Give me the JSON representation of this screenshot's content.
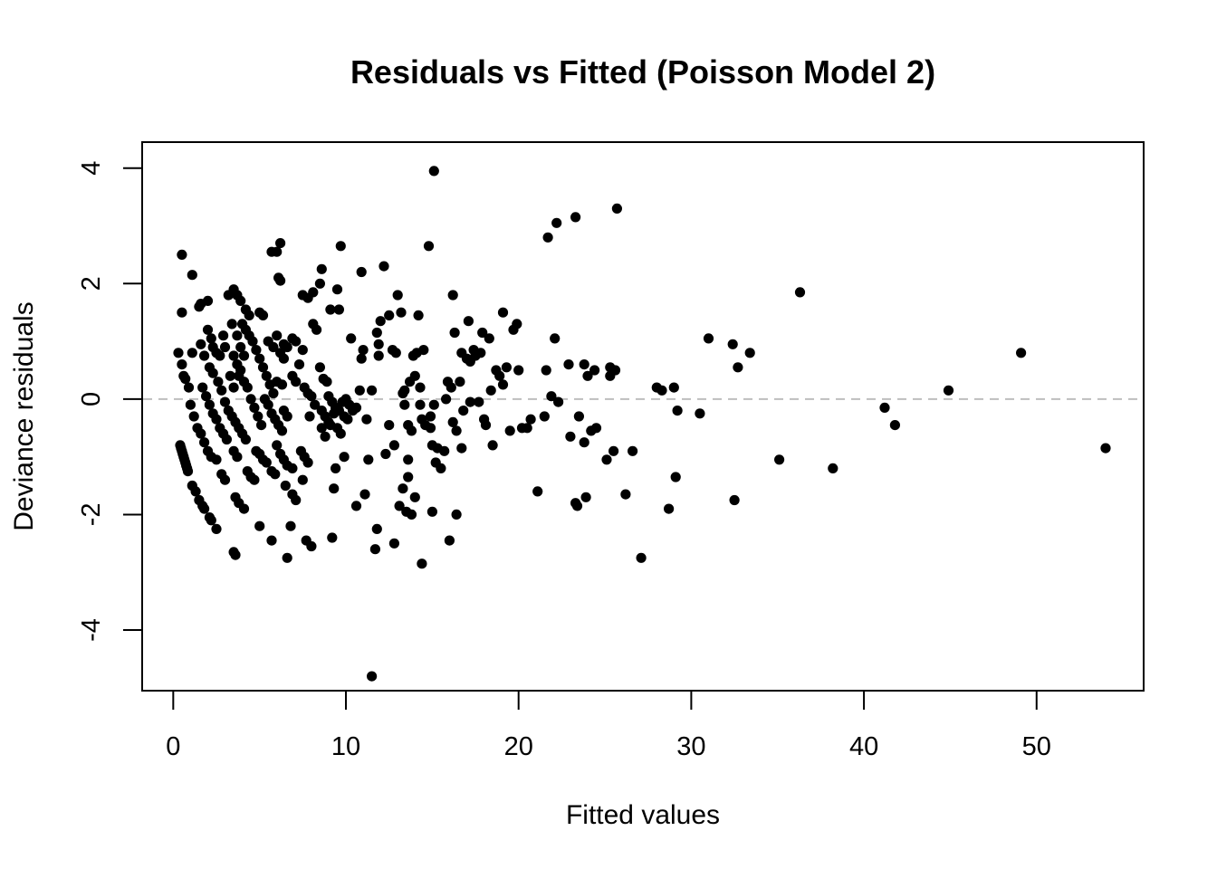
{
  "chart_data": {
    "type": "scatter",
    "title": "Residuals vs Fitted (Poisson Model 2)",
    "xlabel": "Fitted values",
    "ylabel": "Deviance residuals",
    "xlim": [
      -1.8,
      56.2
    ],
    "ylim": [
      -5.05,
      4.45
    ],
    "xticks": [
      0,
      10,
      20,
      30,
      40,
      50
    ],
    "yticks": [
      -4,
      -2,
      0,
      2,
      4
    ],
    "reference_line": {
      "y": 0,
      "style": "dashed",
      "color": "#bebebe"
    },
    "grid": false,
    "legend": "none",
    "point_color": "#000000",
    "points": [
      [
        0.4,
        -0.8
      ],
      [
        0.45,
        -0.85
      ],
      [
        0.5,
        -0.9
      ],
      [
        0.55,
        -0.95
      ],
      [
        0.6,
        -1.0
      ],
      [
        0.65,
        -1.05
      ],
      [
        0.7,
        -1.1
      ],
      [
        0.75,
        -1.15
      ],
      [
        0.8,
        -1.2
      ],
      [
        0.85,
        -1.25
      ],
      [
        1.1,
        -1.5
      ],
      [
        1.3,
        -1.6
      ],
      [
        1.5,
        -1.75
      ],
      [
        1.7,
        -1.85
      ],
      [
        1.8,
        -1.9
      ],
      [
        2.1,
        -2.05
      ],
      [
        2.2,
        -2.1
      ],
      [
        2.5,
        -2.25
      ],
      [
        3.5,
        -2.65
      ],
      [
        3.6,
        -2.7
      ],
      [
        1.0,
        -0.1
      ],
      [
        1.2,
        -0.3
      ],
      [
        1.4,
        -0.5
      ],
      [
        1.6,
        -0.6
      ],
      [
        1.8,
        -0.75
      ],
      [
        2.0,
        -0.9
      ],
      [
        2.2,
        -1.0
      ],
      [
        2.5,
        -1.05
      ],
      [
        1.7,
        0.2
      ],
      [
        1.9,
        0.05
      ],
      [
        2.1,
        -0.1
      ],
      [
        2.3,
        -0.25
      ],
      [
        2.5,
        -0.35
      ],
      [
        2.7,
        -0.5
      ],
      [
        2.9,
        -0.6
      ],
      [
        3.1,
        -0.7
      ],
      [
        2.8,
        -1.3
      ],
      [
        3.0,
        -1.4
      ],
      [
        3.6,
        -1.7
      ],
      [
        3.8,
        -1.8
      ],
      [
        4.1,
        -1.9
      ],
      [
        5.0,
        -2.2
      ],
      [
        5.7,
        -2.45
      ],
      [
        6.6,
        -2.75
      ],
      [
        6.8,
        -2.2
      ],
      [
        7.7,
        -2.45
      ],
      [
        8.0,
        -2.55
      ],
      [
        0.3,
        0.8
      ],
      [
        0.5,
        0.6
      ],
      [
        0.6,
        0.4
      ],
      [
        0.7,
        0.35
      ],
      [
        0.9,
        0.2
      ],
      [
        1.1,
        0.8
      ],
      [
        1.5,
        1.6
      ],
      [
        1.6,
        1.65
      ],
      [
        2.0,
        1.7
      ],
      [
        0.5,
        2.5
      ],
      [
        1.1,
        2.15
      ],
      [
        0.5,
        1.5
      ],
      [
        1.6,
        0.95
      ],
      [
        1.8,
        0.75
      ],
      [
        2.0,
        1.2
      ],
      [
        2.2,
        1.05
      ],
      [
        2.3,
        0.9
      ],
      [
        2.5,
        0.8
      ],
      [
        2.7,
        0.75
      ],
      [
        2.9,
        1.1
      ],
      [
        3.0,
        0.9
      ],
      [
        2.1,
        0.55
      ],
      [
        2.3,
        0.45
      ],
      [
        2.6,
        0.3
      ],
      [
        2.8,
        0.15
      ],
      [
        3.0,
        -0.05
      ],
      [
        3.2,
        -0.2
      ],
      [
        3.4,
        -0.3
      ],
      [
        3.6,
        -0.4
      ],
      [
        3.8,
        -0.5
      ],
      [
        4.0,
        -0.6
      ],
      [
        4.2,
        -0.7
      ],
      [
        3.3,
        0.4
      ],
      [
        3.5,
        0.2
      ],
      [
        3.2,
        1.8
      ],
      [
        3.5,
        1.9
      ],
      [
        3.7,
        1.8
      ],
      [
        3.9,
        1.7
      ],
      [
        4.2,
        1.55
      ],
      [
        4.4,
        1.45
      ],
      [
        3.4,
        1.3
      ],
      [
        3.7,
        1.1
      ],
      [
        3.9,
        0.9
      ],
      [
        4.1,
        0.75
      ],
      [
        3.5,
        0.75
      ],
      [
        3.7,
        0.6
      ],
      [
        3.9,
        0.5
      ],
      [
        4.1,
        0.3
      ],
      [
        4.3,
        0.2
      ],
      [
        4.5,
        0.0
      ],
      [
        4.7,
        -0.15
      ],
      [
        4.9,
        -0.3
      ],
      [
        5.1,
        -0.45
      ],
      [
        3.8,
        0.4
      ],
      [
        3.5,
        -0.9
      ],
      [
        3.7,
        -1.0
      ],
      [
        4.3,
        -1.25
      ],
      [
        4.5,
        -1.35
      ],
      [
        4.7,
        -1.4
      ],
      [
        4.8,
        -0.9
      ],
      [
        5.0,
        -0.95
      ],
      [
        5.2,
        -1.05
      ],
      [
        5.4,
        -1.1
      ],
      [
        5.7,
        -1.25
      ],
      [
        5.9,
        -1.3
      ],
      [
        4.0,
        1.3
      ],
      [
        4.2,
        1.2
      ],
      [
        4.4,
        1.1
      ],
      [
        4.6,
        1.0
      ],
      [
        4.8,
        0.85
      ],
      [
        5.0,
        0.7
      ],
      [
        5.2,
        0.55
      ],
      [
        5.4,
        0.4
      ],
      [
        5.6,
        0.25
      ],
      [
        5.8,
        0.1
      ],
      [
        5.0,
        1.5
      ],
      [
        5.2,
        1.45
      ],
      [
        5.5,
        1.0
      ],
      [
        5.8,
        0.9
      ],
      [
        6.0,
        1.1
      ],
      [
        6.2,
        0.8
      ],
      [
        6.4,
        0.7
      ],
      [
        5.7,
        2.55
      ],
      [
        6.0,
        2.55
      ],
      [
        6.2,
        2.7
      ],
      [
        6.1,
        2.1
      ],
      [
        6.2,
        2.05
      ],
      [
        5.3,
        0.0
      ],
      [
        5.5,
        -0.1
      ],
      [
        5.7,
        -0.25
      ],
      [
        5.9,
        -0.35
      ],
      [
        6.1,
        -0.45
      ],
      [
        6.3,
        -0.55
      ],
      [
        6.4,
        -0.2
      ],
      [
        6.6,
        -0.3
      ],
      [
        6.0,
        -0.8
      ],
      [
        6.2,
        -0.95
      ],
      [
        6.4,
        -1.05
      ],
      [
        6.6,
        -1.15
      ],
      [
        6.9,
        -1.2
      ],
      [
        6.4,
        0.95
      ],
      [
        6.6,
        0.9
      ],
      [
        6.9,
        1.05
      ],
      [
        7.1,
        1.0
      ],
      [
        7.3,
        0.6
      ],
      [
        7.5,
        0.85
      ],
      [
        6.9,
        0.4
      ],
      [
        7.1,
        0.3
      ],
      [
        6.0,
        0.3
      ],
      [
        6.3,
        0.25
      ],
      [
        6.5,
        -1.5
      ],
      [
        6.9,
        -1.65
      ],
      [
        7.1,
        -1.75
      ],
      [
        7.4,
        -0.9
      ],
      [
        7.6,
        -1.0
      ],
      [
        7.8,
        -1.1
      ],
      [
        7.5,
        -1.4
      ],
      [
        7.5,
        1.8
      ],
      [
        7.8,
        1.75
      ],
      [
        8.1,
        1.85
      ],
      [
        8.5,
        2.0
      ],
      [
        8.6,
        2.25
      ],
      [
        7.6,
        0.2
      ],
      [
        7.8,
        0.1
      ],
      [
        8.0,
        0.05
      ],
      [
        8.1,
        1.3
      ],
      [
        8.3,
        1.2
      ],
      [
        8.5,
        0.55
      ],
      [
        8.7,
        0.35
      ],
      [
        8.9,
        0.3
      ],
      [
        8.6,
        -0.2
      ],
      [
        8.8,
        -0.3
      ],
      [
        9.0,
        -0.4
      ],
      [
        7.9,
        -0.3
      ],
      [
        8.2,
        -0.1
      ],
      [
        8.6,
        -0.5
      ],
      [
        8.8,
        -0.65
      ],
      [
        9.1,
        -0.45
      ],
      [
        9.3,
        -0.25
      ],
      [
        9.5,
        -0.5
      ],
      [
        9.7,
        -0.6
      ],
      [
        9.9,
        -0.3
      ],
      [
        10.1,
        -0.35
      ],
      [
        9.9,
        -1.0
      ],
      [
        9.4,
        -1.2
      ],
      [
        9.3,
        -1.55
      ],
      [
        9.2,
        -2.4
      ],
      [
        9.0,
        0.05
      ],
      [
        9.2,
        -0.05
      ],
      [
        9.4,
        -0.15
      ],
      [
        9.6,
        -0.2
      ],
      [
        9.8,
        -0.05
      ],
      [
        10.0,
        0.0
      ],
      [
        10.2,
        -0.1
      ],
      [
        10.4,
        -0.2
      ],
      [
        10.6,
        -0.15
      ],
      [
        9.1,
        1.55
      ],
      [
        9.6,
        1.55
      ],
      [
        9.5,
        1.9
      ],
      [
        9.7,
        2.65
      ],
      [
        10.3,
        1.05
      ],
      [
        10.6,
        -1.85
      ],
      [
        10.8,
        0.15
      ],
      [
        10.9,
        0.7
      ],
      [
        11.0,
        0.85
      ],
      [
        10.9,
        2.2
      ],
      [
        11.1,
        -1.65
      ],
      [
        11.2,
        -0.35
      ],
      [
        11.3,
        -1.05
      ],
      [
        11.5,
        0.15
      ],
      [
        11.7,
        -2.6
      ],
      [
        11.5,
        -4.8
      ],
      [
        11.8,
        -2.25
      ],
      [
        11.9,
        0.95
      ],
      [
        11.9,
        0.75
      ],
      [
        12.0,
        1.35
      ],
      [
        11.8,
        1.15
      ],
      [
        12.2,
        2.3
      ],
      [
        12.3,
        -0.95
      ],
      [
        12.5,
        1.45
      ],
      [
        12.5,
        -0.45
      ],
      [
        12.7,
        0.85
      ],
      [
        12.8,
        -0.8
      ],
      [
        12.9,
        0.8
      ],
      [
        12.8,
        -2.5
      ],
      [
        13.0,
        1.8
      ],
      [
        13.1,
        -1.85
      ],
      [
        13.2,
        1.5
      ],
      [
        13.3,
        -1.55
      ],
      [
        13.3,
        0.1
      ],
      [
        13.4,
        -0.1
      ],
      [
        13.4,
        0.15
      ],
      [
        13.5,
        -1.95
      ],
      [
        13.6,
        -0.45
      ],
      [
        13.6,
        -1.05
      ],
      [
        13.6,
        -1.35
      ],
      [
        13.7,
        0.3
      ],
      [
        13.8,
        -2.0
      ],
      [
        13.8,
        -0.55
      ],
      [
        13.9,
        0.75
      ],
      [
        14.0,
        0.4
      ],
      [
        14.0,
        -1.7
      ],
      [
        14.1,
        0.8
      ],
      [
        14.2,
        1.45
      ],
      [
        14.3,
        0.2
      ],
      [
        14.3,
        -0.1
      ],
      [
        14.4,
        -0.35
      ],
      [
        14.4,
        -2.85
      ],
      [
        14.5,
        0.85
      ],
      [
        14.6,
        -0.45
      ],
      [
        14.8,
        2.65
      ],
      [
        14.9,
        -0.3
      ],
      [
        14.9,
        -0.5
      ],
      [
        15.0,
        -1.95
      ],
      [
        15.0,
        -0.8
      ],
      [
        15.1,
        -0.1
      ],
      [
        15.1,
        3.95
      ],
      [
        15.2,
        -1.1
      ],
      [
        15.3,
        -0.85
      ],
      [
        15.5,
        -1.2
      ],
      [
        15.7,
        -0.9
      ],
      [
        15.8,
        0.0
      ],
      [
        15.9,
        0.3
      ],
      [
        16.0,
        -2.45
      ],
      [
        16.1,
        0.2
      ],
      [
        16.2,
        -0.4
      ],
      [
        16.2,
        1.8
      ],
      [
        16.3,
        1.15
      ],
      [
        16.4,
        -0.55
      ],
      [
        16.4,
        -2.0
      ],
      [
        16.6,
        0.3
      ],
      [
        16.7,
        0.8
      ],
      [
        16.7,
        -0.85
      ],
      [
        16.8,
        -0.2
      ],
      [
        17.0,
        0.7
      ],
      [
        17.1,
        1.35
      ],
      [
        17.2,
        -0.05
      ],
      [
        17.2,
        0.65
      ],
      [
        17.4,
        0.85
      ],
      [
        17.5,
        0.75
      ],
      [
        17.7,
        -0.05
      ],
      [
        17.8,
        0.8
      ],
      [
        17.9,
        1.15
      ],
      [
        18.0,
        -0.35
      ],
      [
        18.1,
        -0.45
      ],
      [
        18.3,
        1.05
      ],
      [
        18.4,
        0.15
      ],
      [
        18.5,
        -0.8
      ],
      [
        18.7,
        0.5
      ],
      [
        18.9,
        0.4
      ],
      [
        19.1,
        1.5
      ],
      [
        19.1,
        0.25
      ],
      [
        19.3,
        0.55
      ],
      [
        19.5,
        -0.55
      ],
      [
        19.7,
        1.2
      ],
      [
        19.9,
        1.3
      ],
      [
        20.0,
        0.5
      ],
      [
        20.2,
        -0.5
      ],
      [
        20.5,
        -0.5
      ],
      [
        20.7,
        -0.35
      ],
      [
        21.1,
        -1.6
      ],
      [
        21.5,
        -0.3
      ],
      [
        21.6,
        0.5
      ],
      [
        21.7,
        2.8
      ],
      [
        21.9,
        0.05
      ],
      [
        22.1,
        1.05
      ],
      [
        22.2,
        3.05
      ],
      [
        22.3,
        -0.05
      ],
      [
        22.9,
        0.6
      ],
      [
        23.0,
        -0.65
      ],
      [
        23.3,
        3.15
      ],
      [
        23.3,
        -1.8
      ],
      [
        23.4,
        -1.85
      ],
      [
        23.5,
        -0.3
      ],
      [
        23.8,
        0.6
      ],
      [
        23.8,
        -0.75
      ],
      [
        23.9,
        -1.7
      ],
      [
        24.0,
        0.4
      ],
      [
        24.2,
        -0.55
      ],
      [
        24.4,
        0.5
      ],
      [
        24.5,
        -0.5
      ],
      [
        25.1,
        -1.05
      ],
      [
        25.3,
        0.4
      ],
      [
        25.3,
        0.55
      ],
      [
        25.5,
        -0.9
      ],
      [
        25.6,
        0.5
      ],
      [
        25.7,
        3.3
      ],
      [
        26.2,
        -1.65
      ],
      [
        26.6,
        -0.9
      ],
      [
        27.1,
        -2.75
      ],
      [
        28.0,
        0.2
      ],
      [
        28.3,
        0.15
      ],
      [
        28.7,
        -1.9
      ],
      [
        29.0,
        0.2
      ],
      [
        29.1,
        -1.35
      ],
      [
        29.2,
        -0.2
      ],
      [
        30.5,
        -0.25
      ],
      [
        31.0,
        1.05
      ],
      [
        32.4,
        0.95
      ],
      [
        32.5,
        -1.75
      ],
      [
        32.7,
        0.55
      ],
      [
        33.4,
        0.8
      ],
      [
        35.1,
        -1.05
      ],
      [
        36.3,
        1.85
      ],
      [
        38.2,
        -1.2
      ],
      [
        41.2,
        -0.15
      ],
      [
        41.8,
        -0.45
      ],
      [
        44.9,
        0.15
      ],
      [
        49.1,
        0.8
      ],
      [
        54.0,
        -0.85
      ]
    ]
  }
}
